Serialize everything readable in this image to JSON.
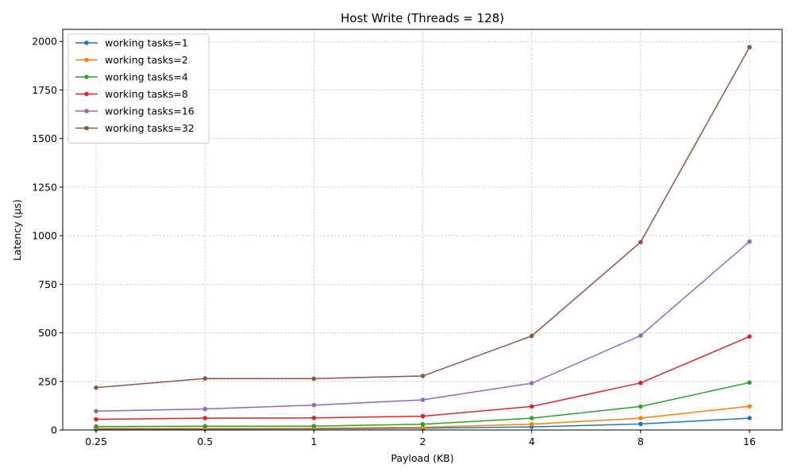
{
  "chart_data": {
    "type": "line",
    "title": "Host Write (Threads = 128)",
    "xlabel": "Payload (KB)",
    "ylabel": "Latency (µs)",
    "categories": [
      "0.25",
      "0.5",
      "1",
      "2",
      "4",
      "8",
      "16"
    ],
    "ylim": [
      0,
      2062
    ],
    "yticks": [
      0,
      250,
      500,
      750,
      1000,
      1250,
      1500,
      1750,
      2000
    ],
    "grid": true,
    "legend_position": "top-left",
    "series": [
      {
        "name": "working tasks=1",
        "color": "#1f77b4",
        "values": [
          4,
          5,
          6,
          9,
          16,
          31,
          61
        ]
      },
      {
        "name": "working tasks=2",
        "color": "#ff7f0e",
        "values": [
          8,
          8,
          9,
          14,
          30,
          61,
          122
        ]
      },
      {
        "name": "working tasks=4",
        "color": "#2ca02c",
        "values": [
          18,
          19,
          20,
          30,
          61,
          121,
          244
        ]
      },
      {
        "name": "working tasks=8",
        "color": "#d62728",
        "values": [
          55,
          61,
          62,
          71,
          121,
          242,
          481
        ]
      },
      {
        "name": "working tasks=16",
        "color": "#9467bd",
        "values": [
          97,
          108,
          128,
          155,
          241,
          486,
          970
        ]
      },
      {
        "name": "working tasks=32",
        "color": "#8c564b",
        "values": [
          218,
          265,
          264,
          278,
          484,
          967,
          1970
        ]
      }
    ]
  }
}
